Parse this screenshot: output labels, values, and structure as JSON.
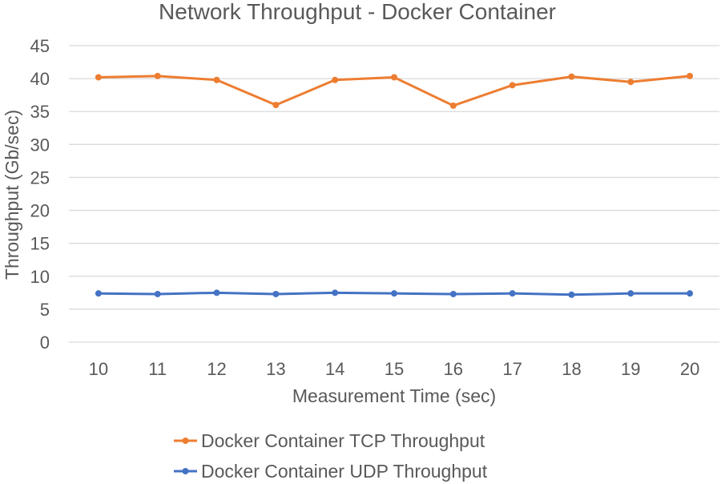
{
  "chart_data": {
    "type": "line",
    "title": "Network Throughput - Docker Container",
    "xlabel": "Measurement Time (sec)",
    "ylabel": "Throughput (Gb/sec)",
    "categories": [
      "10",
      "11",
      "12",
      "13",
      "14",
      "15",
      "16",
      "17",
      "18",
      "19",
      "20"
    ],
    "ylim": [
      0,
      45
    ],
    "yticks": [
      "0",
      "5",
      "10",
      "15",
      "20",
      "25",
      "30",
      "35",
      "40",
      "45"
    ],
    "grid": true,
    "legend_position": "bottom",
    "series": [
      {
        "name": "Docker Container TCP Throughput",
        "color": "#ed7d31",
        "values": [
          40.2,
          40.4,
          39.8,
          36.0,
          39.8,
          40.2,
          35.9,
          39.0,
          40.3,
          39.5,
          40.4
        ]
      },
      {
        "name": "Docker Container UDP Throughput",
        "color": "#4472c4",
        "values": [
          7.4,
          7.3,
          7.5,
          7.3,
          7.5,
          7.4,
          7.3,
          7.4,
          7.2,
          7.4,
          7.4
        ]
      }
    ]
  }
}
